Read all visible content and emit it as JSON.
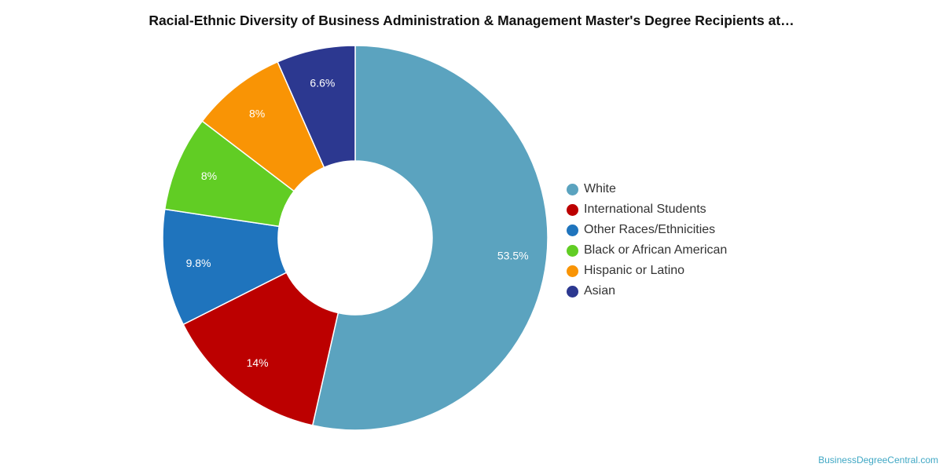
{
  "chart_data": {
    "type": "pie",
    "title": "Racial-Ethnic Diversity of Business Administration & Management Master's Degree Recipients at…",
    "slices": [
      {
        "name": "White",
        "value": 53.5,
        "label": "53.5%",
        "color": "#5ba3bf"
      },
      {
        "name": "International Students",
        "value": 14,
        "label": "14%",
        "color": "#bc0000"
      },
      {
        "name": "Other Races/Ethnicities",
        "value": 9.8,
        "label": "9.8%",
        "color": "#1f74bd"
      },
      {
        "name": "Black or African American",
        "value": 8,
        "label": "8%",
        "color": "#61cd24"
      },
      {
        "name": "Hispanic or Latino",
        "value": 8,
        "label": "8%",
        "color": "#f99405"
      },
      {
        "name": "Asian",
        "value": 6.6,
        "label": "6.6%",
        "color": "#2c3890"
      }
    ],
    "donut": true,
    "legend_position": "right"
  },
  "footer": {
    "source": "BusinessDegreeCentral.com"
  }
}
